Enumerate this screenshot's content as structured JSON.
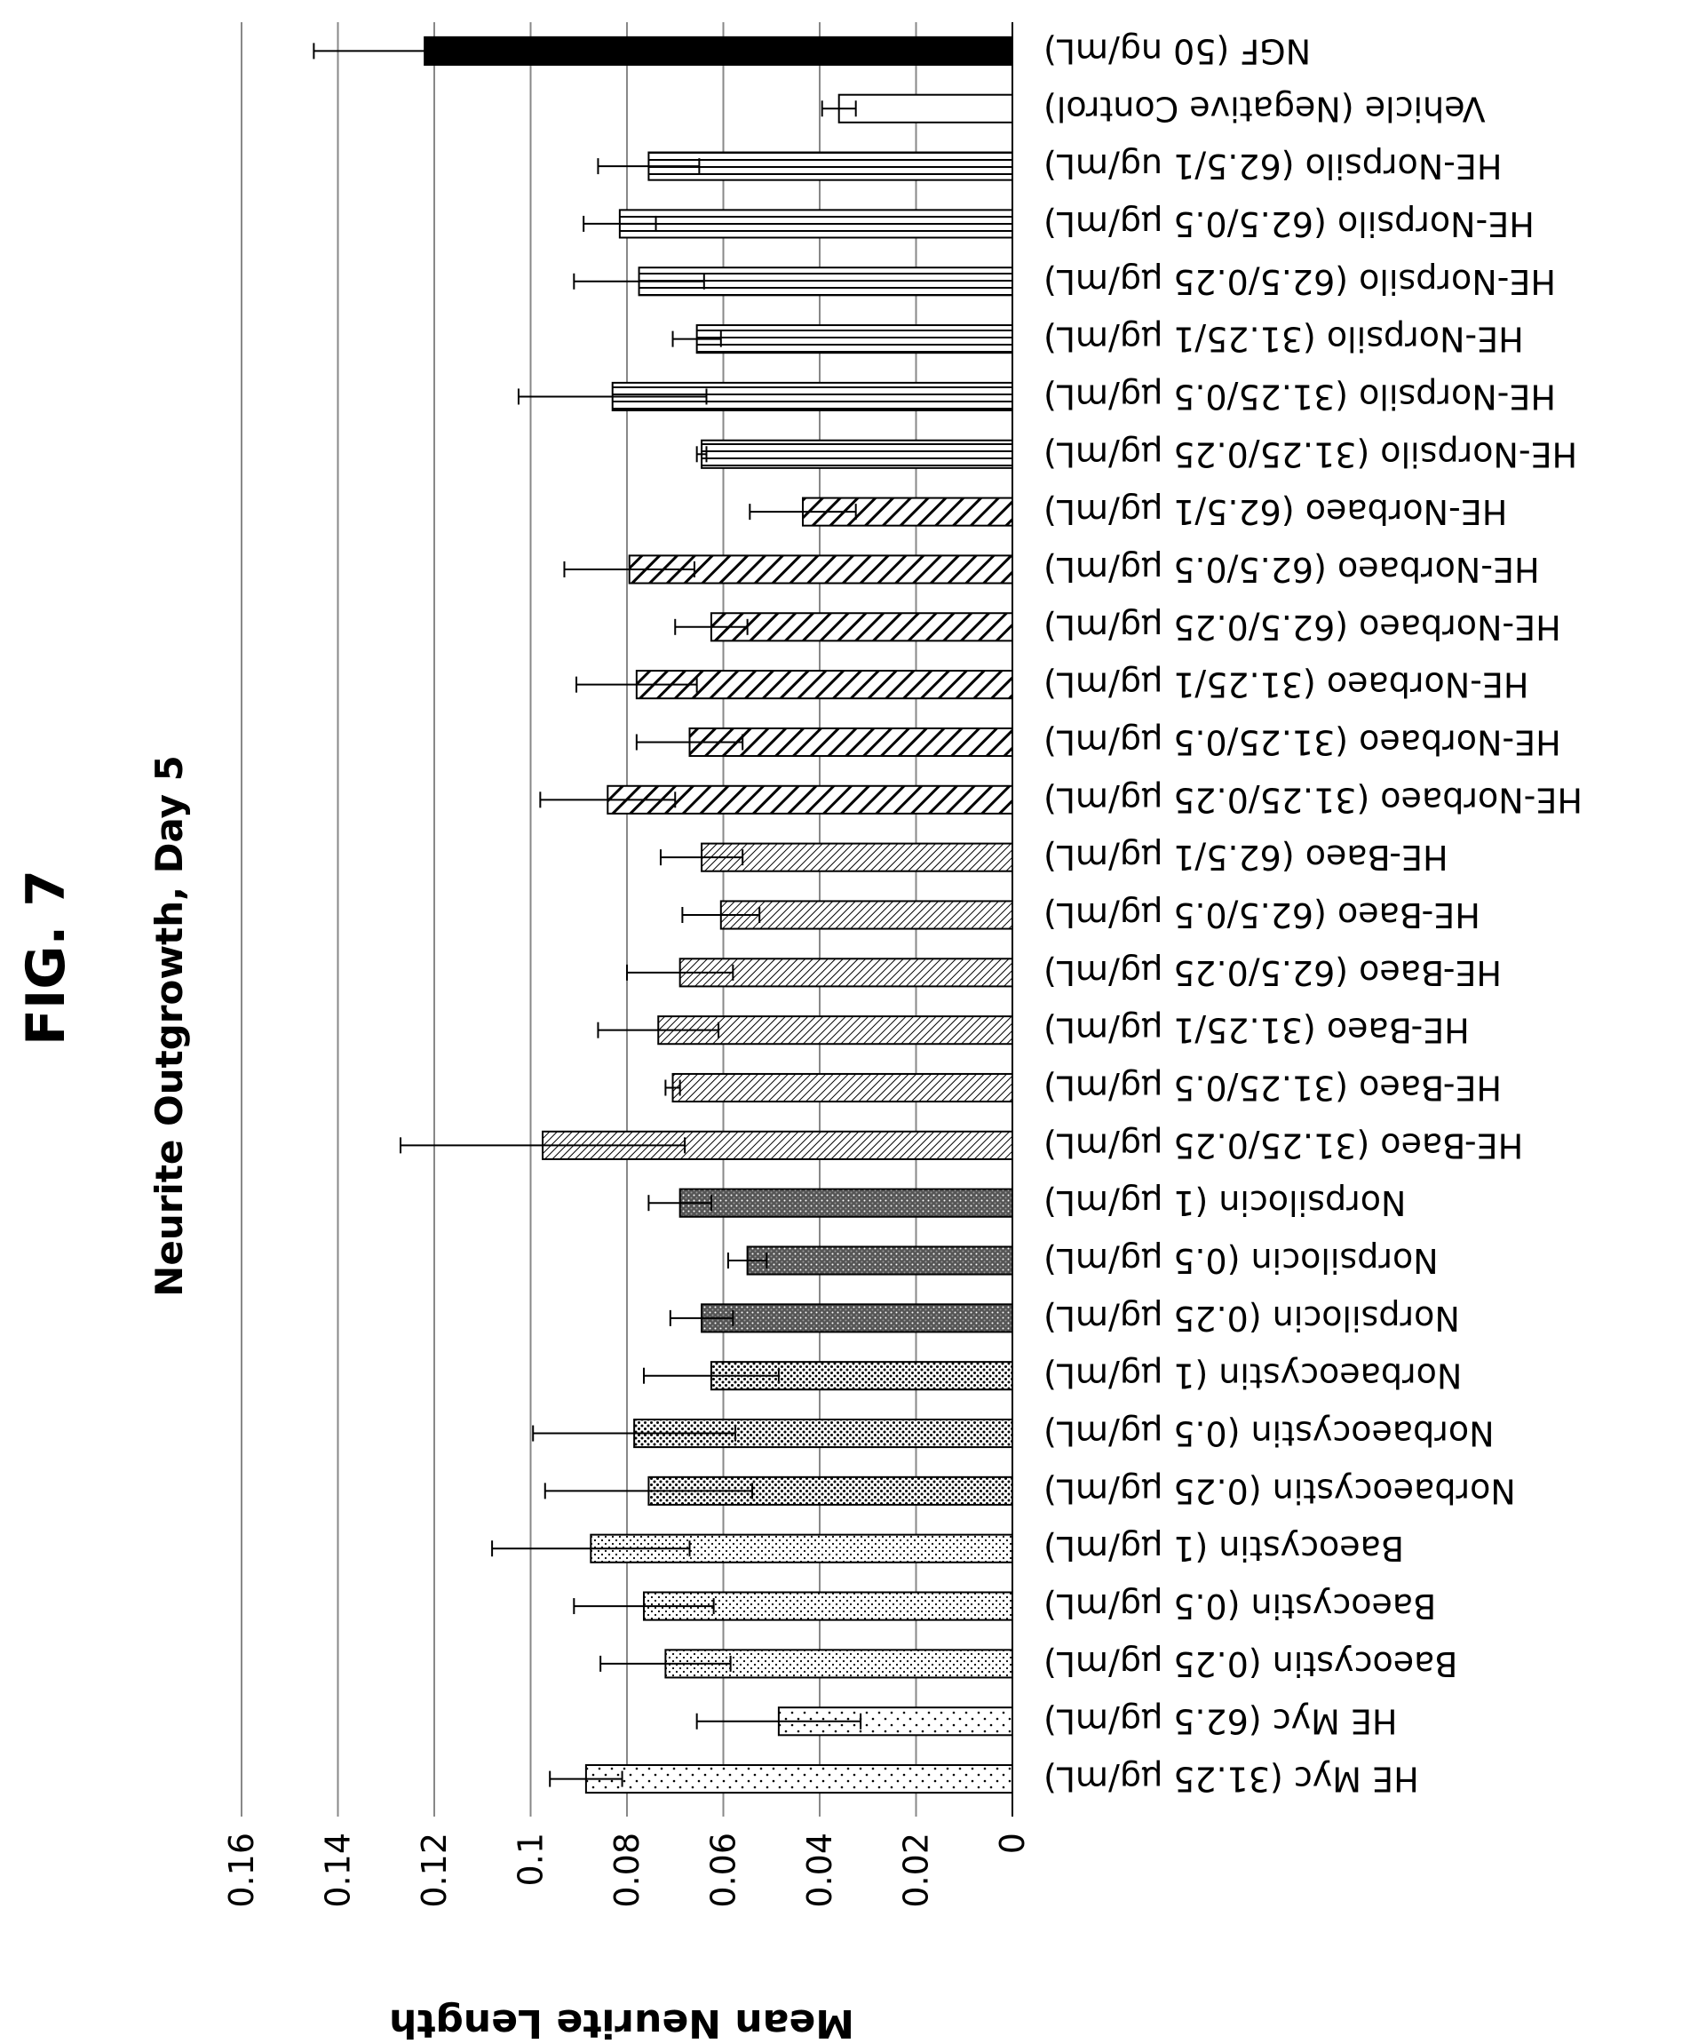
{
  "figure_label": "FIG. 7",
  "chart_data": {
    "type": "bar",
    "orientation": "horizontal",
    "title": "Neurite Outgrowth, Day 5",
    "xlabel": "",
    "ylabel": "Mean Neurite Length",
    "ylim": [
      0,
      0.16
    ],
    "yticks": [
      "0",
      "0.02",
      "0.04",
      "0.06",
      "0.08",
      "0.1",
      "0.12",
      "0.14",
      "0.16"
    ],
    "grid": true,
    "categories": [
      "HE Myc (31.25 µg/mL)",
      "HE Myc (62.5 µg/mL)",
      "Baeocystin (0.25 µg/mL)",
      "Baeocystin (0.5 µg/mL)",
      "Baeocystin (1 µg/mL)",
      "Norbaeocystin (0.25 µg/mL)",
      "Norbaeocystin (0.5 µg/mL)",
      "Norbaeocystin (1 µg/mL)",
      "Norpsilocin (0.25 µg/mL)",
      "Norpsilocin (0.5 µg/mL)",
      "Norpsilocin (1 µg/mL)",
      "HE-Baeo (31.25/0.25 µg/mL)",
      "HE-Baeo (31.25/0.5 µg/mL)",
      "HE-Baeo (31.25/1 µg/mL)",
      "HE-Baeo (62.5/0.25 µg/mL)",
      "HE-Baeo (62.5/0.5 µg/mL)",
      "HE-Baeo (62.5/1 µg/mL)",
      "HE-Norbaeo (31.25/0.25 µg/mL)",
      "HE-Norbaeo (31.25/0.5 µg/mL)",
      "HE-Norbaeo (31.25/1 µg/mL)",
      "HE-Norbaeo (62.5/0.25 µg/mL)",
      "HE-Norbaeo (62.5/0.5 µg/mL)",
      "HE-Norbaeo (62.5/1 µg/mL)",
      "HE-Norpsilo (31.25/0.25 µg/mL)",
      "HE-Norpsilo (31.25/0.5 µg/mL)",
      "HE-Norpsilo (31.25/1 µg/mL)",
      "HE-Norpsilo (62.5/0.25 µg/mL)",
      "HE-Norpsilo (62.5/0.5 µg/mL)",
      "HE-Norpsilo (62.5/1 ug/mL)",
      "Vehicle (Negative Control)",
      "NGF (50 ng/mL)"
    ],
    "values": [
      0.0885,
      0.0485,
      0.072,
      0.0765,
      0.0875,
      0.0755,
      0.0785,
      0.0625,
      0.0645,
      0.055,
      0.069,
      0.0975,
      0.0705,
      0.0735,
      0.069,
      0.0605,
      0.0645,
      0.084,
      0.067,
      0.078,
      0.0625,
      0.0795,
      0.0435,
      0.0645,
      0.083,
      0.0655,
      0.0775,
      0.0815,
      0.0755,
      0.036,
      0.122
    ],
    "error": [
      0.0075,
      0.017,
      0.0135,
      0.0145,
      0.0205,
      0.0215,
      0.021,
      0.014,
      0.0065,
      0.004,
      0.0065,
      0.0295,
      0.0015,
      0.0125,
      0.011,
      0.008,
      0.0085,
      0.014,
      0.011,
      0.0125,
      0.0075,
      0.0135,
      0.011,
      0.001,
      0.0195,
      0.005,
      0.0135,
      0.0075,
      0.0105,
      0.0035,
      0.023
    ],
    "colors": {
      "baseline": "#000000",
      "gridline": "#888888",
      "bar_fill": "#ffffff",
      "ngf_fill": "#000000"
    },
    "pattern_groups": [
      "dots-sparse",
      "dots-sparse",
      "dots-dense",
      "dots-dense",
      "dots-dense",
      "dots-medium",
      "dots-medium",
      "dots-medium",
      "crosshatch-dark",
      "crosshatch-dark",
      "crosshatch-dark",
      "fine-diagonal",
      "fine-diagonal",
      "fine-diagonal",
      "fine-diagonal",
      "fine-diagonal",
      "fine-diagonal",
      "bold-diagonal",
      "bold-diagonal",
      "bold-diagonal",
      "bold-diagonal",
      "bold-diagonal",
      "bold-diagonal",
      "vertical-lines",
      "vertical-lines",
      "vertical-lines",
      "vertical-lines",
      "vertical-lines",
      "vertical-lines",
      "none",
      "solid-black"
    ]
  }
}
